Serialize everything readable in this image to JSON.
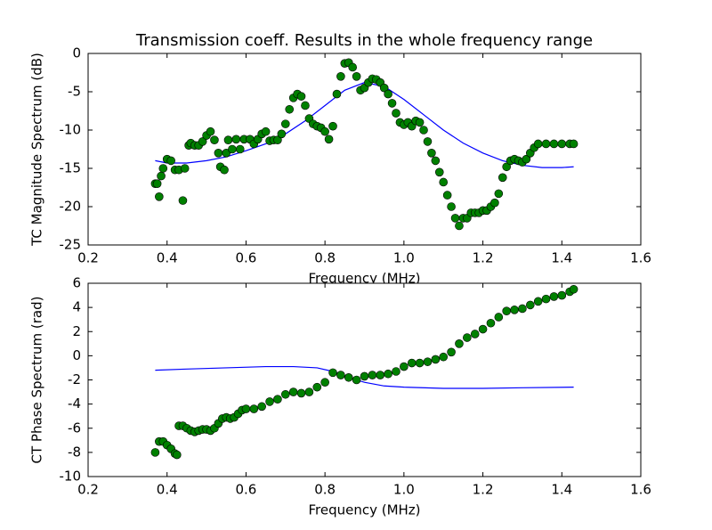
{
  "chart_data": [
    {
      "type": "scatter",
      "title": "Transmission coeff. Results in the whole frequency range",
      "xlabel": "Frequency (MHz)",
      "ylabel": "TC Magnitude Spectrum (dB)",
      "xlim": [
        0.2,
        1.6
      ],
      "xticks": [
        0.2,
        0.4,
        0.6,
        0.8,
        {
          "value": 1,
          "label": "1.0"
        },
        1.2,
        1.4,
        1.6
      ],
      "ylim": [
        -25,
        0
      ],
      "yticks": [
        0,
        -5,
        -10,
        -15,
        -20,
        -25
      ],
      "series": [
        {
          "kind": "line",
          "color": "#0000ff",
          "x": [
            0.37,
            0.4,
            0.45,
            0.5,
            0.55,
            0.6,
            0.65,
            0.7,
            0.75,
            0.8,
            0.85,
            0.9,
            0.95,
            1.0,
            1.05,
            1.1,
            1.15,
            1.2,
            1.25,
            1.3,
            1.35,
            1.4,
            1.43
          ],
          "values": [
            -14,
            -14.3,
            -14.3,
            -14,
            -13.5,
            -12.7,
            -11.8,
            -10.5,
            -8.8,
            -6.8,
            -4.8,
            -3.8,
            -4.3,
            -6,
            -8,
            -10,
            -11.7,
            -13,
            -14,
            -14.6,
            -14.9,
            -14.9,
            -14.8
          ]
        },
        {
          "kind": "marker",
          "color": "#008000",
          "x": [
            0.37,
            0.375,
            0.38,
            0.385,
            0.39,
            0.4,
            0.41,
            0.42,
            0.43,
            0.44,
            0.445,
            0.455,
            0.46,
            0.47,
            0.48,
            0.49,
            0.5,
            0.51,
            0.52,
            0.53,
            0.535,
            0.545,
            0.55,
            0.555,
            0.565,
            0.575,
            0.585,
            0.595,
            0.61,
            0.62,
            0.63,
            0.64,
            0.65,
            0.66,
            0.67,
            0.68,
            0.69,
            0.7,
            0.71,
            0.72,
            0.73,
            0.74,
            0.75,
            0.76,
            0.77,
            0.78,
            0.79,
            0.8,
            0.81,
            0.82,
            0.83,
            0.84,
            0.85,
            0.86,
            0.87,
            0.88,
            0.89,
            0.9,
            0.91,
            0.92,
            0.93,
            0.94,
            0.95,
            0.96,
            0.97,
            0.98,
            0.99,
            1.0,
            1.01,
            1.02,
            1.03,
            1.04,
            1.05,
            1.06,
            1.07,
            1.08,
            1.09,
            1.1,
            1.11,
            1.12,
            1.13,
            1.14,
            1.15,
            1.16,
            1.17,
            1.18,
            1.19,
            1.2,
            1.21,
            1.22,
            1.23,
            1.24,
            1.25,
            1.26,
            1.27,
            1.28,
            1.29,
            1.3,
            1.31,
            1.32,
            1.33,
            1.34,
            1.36,
            1.38,
            1.4,
            1.42,
            1.43
          ],
          "values": [
            -17,
            -17,
            -18.7,
            -16,
            -15,
            -13.8,
            -14,
            -15.2,
            -15.2,
            -19.2,
            -15,
            -12,
            -11.7,
            -12,
            -12,
            -11.5,
            -10.7,
            -10.2,
            -11.3,
            -13,
            -14.8,
            -15.2,
            -13,
            -11.3,
            -12.5,
            -11.2,
            -12.5,
            -11.2,
            -11.2,
            -11.8,
            -11.2,
            -10.5,
            -10.2,
            -11.4,
            -11.3,
            -11.3,
            -10.5,
            -9.2,
            -7.3,
            -5.8,
            -5.3,
            -5.6,
            -6.8,
            -8.5,
            -9.2,
            -9.5,
            -9.7,
            -10.2,
            -11.2,
            -9.5,
            -5.3,
            -3,
            -1.3,
            -1.2,
            -1.8,
            -3,
            -4.8,
            -4.5,
            -3.8,
            -3.3,
            -3.4,
            -3.8,
            -4.5,
            -5.3,
            -6.5,
            -7.8,
            -9,
            -9.3,
            -9,
            -9.5,
            -8.8,
            -9,
            -10,
            -11.5,
            -13,
            -14,
            -15.5,
            -16.8,
            -18.5,
            -20,
            -21.5,
            -22.5,
            -21.5,
            -21.5,
            -20.8,
            -20.8,
            -20.8,
            -20.5,
            -20.5,
            -20,
            -19.5,
            -18.3,
            -16.2,
            -14.8,
            -14,
            -13.8,
            -14,
            -14.2,
            -13.8,
            -13,
            -12.3,
            -11.8,
            -11.8,
            -11.8,
            -11.8,
            -11.8,
            -11.8
          ]
        }
      ]
    },
    {
      "type": "scatter",
      "xlabel": "Frequency (MHz)",
      "ylabel": "CT Phase Spectrum (rad)",
      "xlim": [
        0.2,
        1.6
      ],
      "xticks": [
        0.2,
        0.4,
        0.6,
        0.8,
        {
          "value": 1,
          "label": "1.0"
        },
        1.2,
        1.4,
        1.6
      ],
      "ylim": [
        -10,
        6
      ],
      "yticks": [
        6,
        4,
        2,
        0,
        -2,
        -4,
        -6,
        -8,
        -10
      ],
      "series": [
        {
          "kind": "line",
          "color": "#0000ff",
          "x": [
            0.37,
            0.45,
            0.55,
            0.65,
            0.72,
            0.78,
            0.82,
            0.86,
            0.9,
            0.95,
            1.0,
            1.1,
            1.2,
            1.3,
            1.43
          ],
          "values": [
            -1.2,
            -1.1,
            -1,
            -0.9,
            -0.9,
            -1,
            -1.3,
            -1.8,
            -2.2,
            -2.5,
            -2.6,
            -2.7,
            -2.7,
            -2.65,
            -2.6
          ]
        },
        {
          "kind": "marker",
          "color": "#008000",
          "x": [
            0.37,
            0.38,
            0.39,
            0.4,
            0.41,
            0.42,
            0.425,
            0.43,
            0.44,
            0.45,
            0.46,
            0.47,
            0.48,
            0.49,
            0.5,
            0.51,
            0.52,
            0.53,
            0.54,
            0.55,
            0.56,
            0.57,
            0.58,
            0.59,
            0.6,
            0.62,
            0.64,
            0.66,
            0.68,
            0.7,
            0.72,
            0.74,
            0.76,
            0.78,
            0.8,
            0.82,
            0.84,
            0.86,
            0.88,
            0.9,
            0.92,
            0.94,
            0.96,
            0.98,
            1.0,
            1.02,
            1.04,
            1.06,
            1.08,
            1.1,
            1.12,
            1.14,
            1.16,
            1.18,
            1.2,
            1.22,
            1.24,
            1.26,
            1.28,
            1.3,
            1.32,
            1.34,
            1.36,
            1.38,
            1.4,
            1.42,
            1.43
          ],
          "values": [
            -8,
            -7.1,
            -7.1,
            -7.4,
            -7.7,
            -8.1,
            -8.2,
            -5.8,
            -5.8,
            -6,
            -6.2,
            -6.3,
            -6.2,
            -6.1,
            -6.1,
            -6.2,
            -6,
            -5.6,
            -5.2,
            -5.1,
            -5.2,
            -5.1,
            -4.8,
            -4.5,
            -4.4,
            -4.4,
            -4.2,
            -3.8,
            -3.6,
            -3.2,
            -3,
            -3.1,
            -3,
            -2.6,
            -2.2,
            -1.4,
            -1.6,
            -1.8,
            -2,
            -1.7,
            -1.6,
            -1.6,
            -1.5,
            -1.3,
            -0.9,
            -0.6,
            -0.6,
            -0.5,
            -0.3,
            -0.1,
            0.3,
            1,
            1.5,
            1.8,
            2.2,
            2.7,
            3.2,
            3.7,
            3.8,
            3.9,
            4.2,
            4.5,
            4.7,
            4.9,
            5,
            5.3,
            5.5
          ]
        }
      ]
    }
  ]
}
